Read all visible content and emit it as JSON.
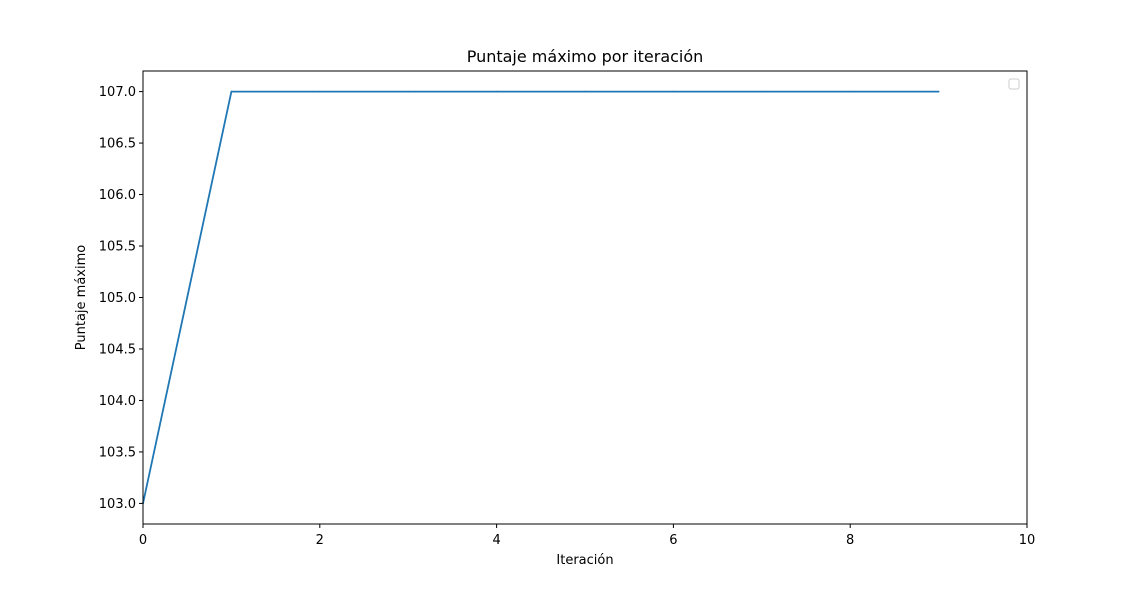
{
  "chart_data": {
    "type": "line",
    "title": "Puntaje máximo por iteración",
    "xlabel": "Iteración",
    "ylabel": "Puntaje máximo",
    "xlim": [
      0,
      10
    ],
    "ylim": [
      102.8,
      107.2
    ],
    "xticks": [
      0,
      2,
      4,
      6,
      8,
      10
    ],
    "xtick_labels": [
      "0",
      "2",
      "4",
      "6",
      "8",
      "10"
    ],
    "yticks": [
      103.0,
      103.5,
      104.0,
      104.5,
      105.0,
      105.5,
      106.0,
      106.5,
      107.0
    ],
    "ytick_labels": [
      "103.0",
      "103.5",
      "104.0",
      "104.5",
      "105.0",
      "105.5",
      "106.0",
      "106.5",
      "107.0"
    ],
    "grid": false,
    "legend": "top-right",
    "series": [
      {
        "x": [
          0,
          1,
          2,
          3,
          4,
          5,
          6,
          7,
          8,
          9
        ],
        "values": [
          103,
          107,
          107,
          107,
          107,
          107,
          107,
          107,
          107,
          107
        ],
        "color": "#1f77b4"
      }
    ]
  }
}
